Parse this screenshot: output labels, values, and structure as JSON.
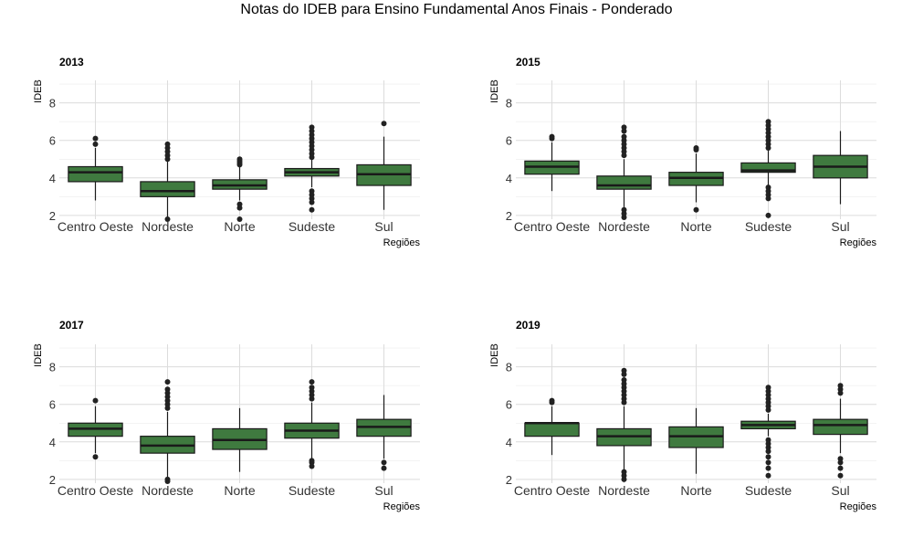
{
  "title": "Notas do IDEB para Ensino Fundamental Anos Finais - Ponderado",
  "colors": {
    "box_fill": "#3f7a3f",
    "box_stroke": "#1a1a1a",
    "grid": "#dcdcdc",
    "text": "#333333"
  },
  "chart_data": [
    {
      "type": "boxplot",
      "title": "2013",
      "xlabel": "Regiões",
      "ylabel": "IDEB",
      "ylim": [
        1.8,
        9.2
      ],
      "yticks": [
        2,
        4,
        6,
        8
      ],
      "grid": true,
      "categories": [
        "Centro Oeste",
        "Nordeste",
        "Norte",
        "Sudeste",
        "Sul"
      ],
      "boxes": [
        {
          "q1": 3.8,
          "median": 4.3,
          "q3": 4.6,
          "whisker_low": 2.8,
          "whisker_high": 5.6,
          "outliers": [
            5.8,
            6.1
          ]
        },
        {
          "q1": 3.0,
          "median": 3.3,
          "q3": 3.8,
          "whisker_low": 1.9,
          "whisker_high": 4.9,
          "outliers": [
            1.8,
            5.0,
            5.2,
            5.4,
            5.6,
            5.8
          ]
        },
        {
          "q1": 3.4,
          "median": 3.6,
          "q3": 3.9,
          "whisker_low": 2.8,
          "whisker_high": 4.6,
          "outliers": [
            1.8,
            2.4,
            2.6,
            4.7,
            4.8,
            4.9,
            5.0
          ]
        },
        {
          "q1": 4.1,
          "median": 4.3,
          "q3": 4.5,
          "whisker_low": 3.5,
          "whisker_high": 5.0,
          "outliers": [
            2.3,
            2.7,
            2.9,
            3.1,
            3.3,
            5.1,
            5.3,
            5.5,
            5.7,
            5.9,
            6.1,
            6.3,
            6.5,
            6.7
          ]
        },
        {
          "q1": 3.6,
          "median": 4.2,
          "q3": 4.7,
          "whisker_low": 2.3,
          "whisker_high": 6.2,
          "outliers": [
            6.9
          ]
        }
      ]
    },
    {
      "type": "boxplot",
      "title": "2015",
      "xlabel": "Regiões",
      "ylabel": "IDEB",
      "ylim": [
        1.8,
        9.2
      ],
      "yticks": [
        2,
        4,
        6,
        8
      ],
      "grid": true,
      "categories": [
        "Centro Oeste",
        "Nordeste",
        "Norte",
        "Sudeste",
        "Sul"
      ],
      "boxes": [
        {
          "q1": 4.2,
          "median": 4.6,
          "q3": 4.9,
          "whisker_low": 3.3,
          "whisker_high": 5.9,
          "outliers": [
            6.1,
            6.2
          ]
        },
        {
          "q1": 3.4,
          "median": 3.6,
          "q3": 4.1,
          "whisker_low": 2.4,
          "whisker_high": 5.0,
          "outliers": [
            1.9,
            2.1,
            2.3,
            5.2,
            5.4,
            5.6,
            5.8,
            6.0,
            6.2,
            6.5,
            6.7
          ]
        },
        {
          "q1": 3.6,
          "median": 4.0,
          "q3": 4.3,
          "whisker_low": 2.7,
          "whisker_high": 5.3,
          "outliers": [
            2.3,
            5.5,
            5.6
          ]
        },
        {
          "q1": 4.3,
          "median": 4.4,
          "q3": 4.8,
          "whisker_low": 3.6,
          "whisker_high": 5.5,
          "outliers": [
            2.0,
            2.9,
            3.1,
            3.3,
            3.5,
            5.6,
            5.8,
            6.0,
            6.2,
            6.4,
            6.6,
            6.8,
            7.0
          ]
        },
        {
          "q1": 4.0,
          "median": 4.6,
          "q3": 5.2,
          "whisker_low": 2.6,
          "whisker_high": 6.5,
          "outliers": []
        }
      ]
    },
    {
      "type": "boxplot",
      "title": "2017",
      "xlabel": "Regiões",
      "ylabel": "IDEB",
      "ylim": [
        1.8,
        9.2
      ],
      "yticks": [
        2,
        4,
        6,
        8
      ],
      "grid": true,
      "categories": [
        "Centro Oeste",
        "Nordeste",
        "Norte",
        "Sudeste",
        "Sul"
      ],
      "boxes": [
        {
          "q1": 4.3,
          "median": 4.7,
          "q3": 5.0,
          "whisker_low": 3.4,
          "whisker_high": 5.9,
          "outliers": [
            3.2,
            6.2
          ]
        },
        {
          "q1": 3.4,
          "median": 3.8,
          "q3": 4.3,
          "whisker_low": 2.1,
          "whisker_high": 5.6,
          "outliers": [
            1.9,
            2.0,
            5.8,
            6.0,
            6.2,
            6.4,
            6.6,
            6.8,
            7.2
          ]
        },
        {
          "q1": 3.6,
          "median": 4.1,
          "q3": 4.7,
          "whisker_low": 2.4,
          "whisker_high": 5.8,
          "outliers": []
        },
        {
          "q1": 4.2,
          "median": 4.6,
          "q3": 5.0,
          "whisker_low": 3.1,
          "whisker_high": 6.1,
          "outliers": [
            2.7,
            2.9,
            3.0,
            6.3,
            6.5,
            6.7,
            6.9,
            7.2
          ]
        },
        {
          "q1": 4.3,
          "median": 4.8,
          "q3": 5.2,
          "whisker_low": 3.1,
          "whisker_high": 6.5,
          "outliers": [
            2.6,
            2.9
          ]
        }
      ]
    },
    {
      "type": "boxplot",
      "title": "2019",
      "xlabel": "Regiões",
      "ylabel": "IDEB",
      "ylim": [
        1.8,
        9.2
      ],
      "yticks": [
        2,
        4,
        6,
        8
      ],
      "grid": true,
      "categories": [
        "Centro Oeste",
        "Nordeste",
        "Norte",
        "Sudeste",
        "Sul"
      ],
      "boxes": [
        {
          "q1": 4.3,
          "median": 5.0,
          "q3": 5.0,
          "whisker_low": 3.3,
          "whisker_high": 5.9,
          "outliers": [
            6.1,
            6.2
          ]
        },
        {
          "q1": 3.8,
          "median": 4.3,
          "q3": 4.7,
          "whisker_low": 2.5,
          "whisker_high": 5.9,
          "outliers": [
            2.0,
            2.2,
            2.4,
            6.1,
            6.3,
            6.5,
            6.7,
            6.9,
            7.1,
            7.3,
            7.6,
            7.8
          ]
        },
        {
          "q1": 3.7,
          "median": 4.3,
          "q3": 4.8,
          "whisker_low": 2.3,
          "whisker_high": 5.8,
          "outliers": []
        },
        {
          "q1": 4.7,
          "median": 4.9,
          "q3": 5.1,
          "whisker_low": 4.3,
          "whisker_high": 5.5,
          "outliers": [
            2.2,
            2.6,
            2.9,
            3.2,
            3.5,
            3.7,
            3.9,
            4.1,
            5.7,
            5.9,
            6.1,
            6.3,
            6.5,
            6.7,
            6.9
          ]
        },
        {
          "q1": 4.4,
          "median": 4.9,
          "q3": 5.2,
          "whisker_low": 3.4,
          "whisker_high": 6.3,
          "outliers": [
            2.2,
            2.6,
            2.9,
            3.1,
            6.6,
            6.8,
            7.0
          ]
        }
      ]
    }
  ]
}
